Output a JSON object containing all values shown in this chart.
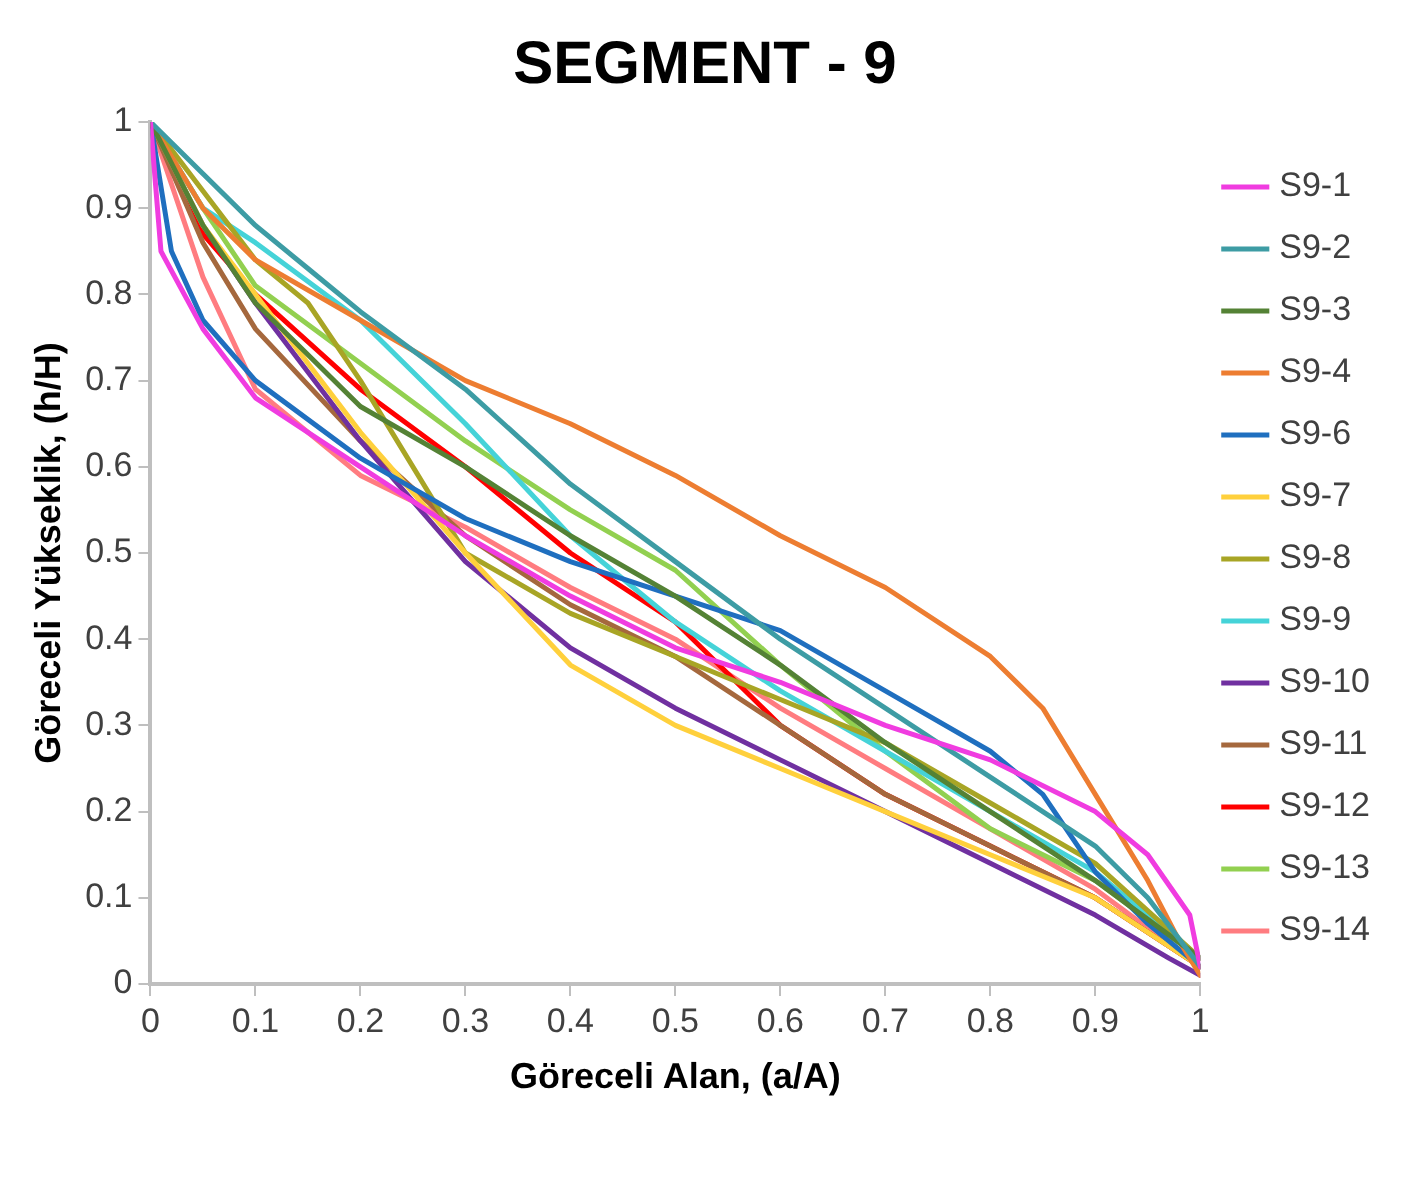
{
  "chart_data": {
    "type": "line",
    "title": "SEGMENT - 9",
    "xlabel": "Göreceli Alan, (a/A)",
    "ylabel": "Göreceli Yükseklik, (h/H)",
    "xlim": [
      0,
      1
    ],
    "ylim": [
      0,
      1
    ],
    "xticks": [
      0,
      0.1,
      0.2,
      0.3,
      0.4,
      0.5,
      0.6,
      0.7,
      0.8,
      0.9,
      1
    ],
    "yticks": [
      0,
      0.1,
      0.2,
      0.3,
      0.4,
      0.5,
      0.6,
      0.7,
      0.8,
      0.9,
      1
    ],
    "grid": false,
    "legend": "right",
    "marker": "none",
    "series": [
      {
        "name": "S9-1",
        "color": "#f03ce0",
        "x": [
          0,
          0.01,
          0.05,
          0.1,
          0.2,
          0.3,
          0.4,
          0.5,
          0.6,
          0.7,
          0.8,
          0.9,
          0.95,
          0.99,
          1
        ],
        "values": [
          1,
          0.85,
          0.76,
          0.68,
          0.6,
          0.52,
          0.45,
          0.39,
          0.35,
          0.3,
          0.26,
          0.2,
          0.15,
          0.08,
          0.02
        ]
      },
      {
        "name": "S9-2",
        "color": "#3d9ca4",
        "x": [
          0,
          0.05,
          0.1,
          0.15,
          0.2,
          0.3,
          0.4,
          0.5,
          0.6,
          0.7,
          0.8,
          0.9,
          0.95,
          1
        ],
        "values": [
          1,
          0.94,
          0.88,
          0.83,
          0.78,
          0.69,
          0.58,
          0.49,
          0.4,
          0.32,
          0.24,
          0.16,
          0.1,
          0.02
        ]
      },
      {
        "name": "S9-3",
        "color": "#548235",
        "x": [
          0,
          0.05,
          0.1,
          0.2,
          0.3,
          0.4,
          0.5,
          0.6,
          0.7,
          0.8,
          0.9,
          1
        ],
        "values": [
          1,
          0.88,
          0.79,
          0.67,
          0.6,
          0.52,
          0.45,
          0.37,
          0.28,
          0.2,
          0.12,
          0.03
        ]
      },
      {
        "name": "S9-4",
        "color": "#ed7d31",
        "x": [
          0,
          0.05,
          0.1,
          0.2,
          0.3,
          0.4,
          0.5,
          0.6,
          0.7,
          0.8,
          0.85,
          0.9,
          0.95,
          0.98,
          1
        ],
        "values": [
          1,
          0.9,
          0.84,
          0.77,
          0.7,
          0.65,
          0.59,
          0.52,
          0.46,
          0.38,
          0.32,
          0.22,
          0.12,
          0.05,
          0.01
        ]
      },
      {
        "name": "S9-6",
        "color": "#1f6fbf",
        "x": [
          0,
          0.02,
          0.05,
          0.1,
          0.2,
          0.3,
          0.4,
          0.5,
          0.6,
          0.7,
          0.8,
          0.85,
          0.9,
          0.95,
          1
        ],
        "values": [
          1,
          0.85,
          0.77,
          0.7,
          0.61,
          0.54,
          0.49,
          0.45,
          0.41,
          0.34,
          0.27,
          0.22,
          0.13,
          0.07,
          0.02
        ]
      },
      {
        "name": "S9-7",
        "color": "#ffd03c",
        "x": [
          0,
          0.05,
          0.1,
          0.2,
          0.3,
          0.4,
          0.5,
          0.6,
          0.7,
          0.8,
          0.9,
          1
        ],
        "values": [
          1,
          0.88,
          0.8,
          0.64,
          0.5,
          0.37,
          0.3,
          0.25,
          0.2,
          0.15,
          0.1,
          0.02
        ]
      },
      {
        "name": "S9-8",
        "color": "#a8a525",
        "x": [
          0,
          0.05,
          0.1,
          0.15,
          0.2,
          0.3,
          0.4,
          0.5,
          0.6,
          0.7,
          0.8,
          0.9,
          1
        ],
        "values": [
          1,
          0.92,
          0.84,
          0.79,
          0.7,
          0.5,
          0.43,
          0.38,
          0.33,
          0.28,
          0.21,
          0.14,
          0.03
        ]
      },
      {
        "name": "S9-9",
        "color": "#45d3d8",
        "x": [
          0,
          0.05,
          0.1,
          0.2,
          0.3,
          0.4,
          0.5,
          0.6,
          0.7,
          0.8,
          0.9,
          1
        ],
        "values": [
          1,
          0.9,
          0.86,
          0.77,
          0.65,
          0.52,
          0.42,
          0.34,
          0.27,
          0.2,
          0.13,
          0.03
        ]
      },
      {
        "name": "S9-10",
        "color": "#7030a0",
        "x": [
          0,
          0.05,
          0.1,
          0.2,
          0.3,
          0.4,
          0.5,
          0.6,
          0.7,
          0.8,
          0.9,
          0.97,
          1
        ],
        "values": [
          1,
          0.88,
          0.79,
          0.63,
          0.49,
          0.39,
          0.32,
          0.26,
          0.2,
          0.14,
          0.08,
          0.03,
          0.01
        ]
      },
      {
        "name": "S9-11",
        "color": "#a5683d",
        "x": [
          0,
          0.05,
          0.1,
          0.2,
          0.3,
          0.4,
          0.5,
          0.6,
          0.7,
          0.8,
          0.9,
          1
        ],
        "values": [
          1,
          0.86,
          0.76,
          0.63,
          0.52,
          0.44,
          0.38,
          0.3,
          0.22,
          0.16,
          0.1,
          0.02
        ]
      },
      {
        "name": "S9-12",
        "color": "#ff0000",
        "x": [
          0,
          0.05,
          0.1,
          0.2,
          0.3,
          0.4,
          0.5,
          0.6,
          0.7,
          0.8,
          0.9,
          1
        ],
        "values": [
          1,
          0.87,
          0.8,
          0.69,
          0.6,
          0.5,
          0.42,
          0.3,
          0.22,
          0.16,
          0.1,
          0.02
        ]
      },
      {
        "name": "S9-13",
        "color": "#92d050",
        "x": [
          0,
          0.05,
          0.1,
          0.2,
          0.3,
          0.4,
          0.5,
          0.6,
          0.7,
          0.8,
          0.9,
          1
        ],
        "values": [
          1,
          0.9,
          0.81,
          0.72,
          0.63,
          0.55,
          0.48,
          0.37,
          0.27,
          0.18,
          0.12,
          0.03
        ]
      },
      {
        "name": "S9-14",
        "color": "#ff7c80",
        "x": [
          0,
          0.05,
          0.1,
          0.2,
          0.3,
          0.4,
          0.5,
          0.6,
          0.7,
          0.8,
          0.9,
          1
        ],
        "values": [
          1,
          0.82,
          0.69,
          0.59,
          0.53,
          0.46,
          0.4,
          0.32,
          0.25,
          0.18,
          0.11,
          0.02
        ]
      }
    ]
  }
}
